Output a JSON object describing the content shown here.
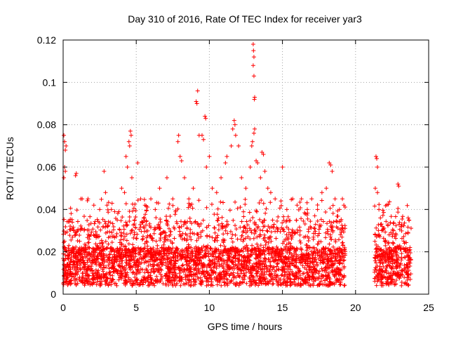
{
  "chart_data": {
    "type": "scatter",
    "title": "Day 310 of 2016, Rate Of TEC Index for receiver yar3",
    "xlabel": "GPS time / hours",
    "ylabel": "ROTI / TECUs",
    "xlim": [
      0,
      25
    ],
    "ylim": [
      0,
      0.12
    ],
    "x_ticks": [
      0,
      5,
      10,
      15,
      20,
      25
    ],
    "y_ticks": [
      0,
      0.02,
      0.04,
      0.06,
      0.08,
      0.1,
      0.12
    ],
    "x_tick_labels": [
      "0",
      "5",
      "10",
      "15",
      "20",
      "25"
    ],
    "y_tick_labels": [
      "0",
      "0.02",
      "0.04",
      "0.06",
      "0.08",
      "0.1",
      "0.12"
    ],
    "grid": true,
    "marker": "plus",
    "series_color": "#ff0000",
    "coverage_segments": [
      [
        0,
        19.3
      ],
      [
        21.3,
        23.8
      ]
    ],
    "points": [
      [
        0.05,
        0.075
      ],
      [
        0.1,
        0.072
      ],
      [
        0.15,
        0.068
      ],
      [
        0.2,
        0.07
      ],
      [
        0.1,
        0.06
      ],
      [
        0.15,
        0.058
      ],
      [
        0.05,
        0.055
      ],
      [
        0.9,
        0.057
      ],
      [
        0.85,
        0.056
      ],
      [
        1.3,
        0.045
      ],
      [
        1.7,
        0.045
      ],
      [
        2.1,
        0.042
      ],
      [
        2.5,
        0.04
      ],
      [
        2.8,
        0.058
      ],
      [
        2.9,
        0.048
      ],
      [
        3.3,
        0.04
      ],
      [
        3.7,
        0.035
      ],
      [
        4.0,
        0.05
      ],
      [
        4.2,
        0.048
      ],
      [
        4.3,
        0.065
      ],
      [
        4.4,
        0.06
      ],
      [
        4.5,
        0.072
      ],
      [
        4.6,
        0.077
      ],
      [
        4.65,
        0.075
      ],
      [
        4.55,
        0.07
      ],
      [
        4.7,
        0.055
      ],
      [
        5.1,
        0.062
      ],
      [
        5.3,
        0.045
      ],
      [
        5.6,
        0.042
      ],
      [
        6.0,
        0.045
      ],
      [
        6.3,
        0.04
      ],
      [
        6.6,
        0.05
      ],
      [
        7.1,
        0.055
      ],
      [
        7.5,
        0.045
      ],
      [
        7.9,
        0.075
      ],
      [
        7.85,
        0.072
      ],
      [
        8.0,
        0.065
      ],
      [
        8.1,
        0.063
      ],
      [
        8.3,
        0.055
      ],
      [
        8.6,
        0.045
      ],
      [
        8.9,
        0.05
      ],
      [
        9.1,
        0.091
      ],
      [
        9.15,
        0.09
      ],
      [
        9.2,
        0.096
      ],
      [
        9.3,
        0.075
      ],
      [
        9.5,
        0.075
      ],
      [
        9.6,
        0.073
      ],
      [
        9.7,
        0.084
      ],
      [
        9.75,
        0.083
      ],
      [
        9.8,
        0.06
      ],
      [
        10.0,
        0.065
      ],
      [
        10.2,
        0.05
      ],
      [
        10.5,
        0.048
      ],
      [
        10.8,
        0.055
      ],
      [
        11.1,
        0.062
      ],
      [
        11.2,
        0.065
      ],
      [
        11.5,
        0.07
      ],
      [
        11.6,
        0.078
      ],
      [
        11.7,
        0.082
      ],
      [
        11.75,
        0.08
      ],
      [
        11.8,
        0.075
      ],
      [
        12.0,
        0.07
      ],
      [
        12.2,
        0.055
      ],
      [
        12.5,
        0.05
      ],
      [
        12.8,
        0.06
      ],
      [
        12.9,
        0.07
      ],
      [
        12.95,
        0.072
      ],
      [
        13.0,
        0.118
      ],
      [
        13.02,
        0.115
      ],
      [
        13.05,
        0.112
      ],
      [
        13.0,
        0.108
      ],
      [
        13.05,
        0.103
      ],
      [
        13.1,
        0.093
      ],
      [
        13.08,
        0.092
      ],
      [
        13.1,
        0.078
      ],
      [
        13.05,
        0.076
      ],
      [
        13.2,
        0.063
      ],
      [
        13.3,
        0.062
      ],
      [
        13.5,
        0.055
      ],
      [
        13.6,
        0.067
      ],
      [
        13.7,
        0.066
      ],
      [
        13.8,
        0.058
      ],
      [
        14.0,
        0.05
      ],
      [
        14.2,
        0.048
      ],
      [
        14.5,
        0.045
      ],
      [
        14.9,
        0.044
      ],
      [
        15.0,
        0.06
      ],
      [
        15.3,
        0.04
      ],
      [
        15.7,
        0.045
      ],
      [
        16.0,
        0.042
      ],
      [
        16.3,
        0.045
      ],
      [
        16.7,
        0.04
      ],
      [
        17.0,
        0.045
      ],
      [
        17.4,
        0.04
      ],
      [
        17.7,
        0.048
      ],
      [
        18.0,
        0.05
      ],
      [
        18.2,
        0.062
      ],
      [
        18.3,
        0.061
      ],
      [
        18.4,
        0.058
      ],
      [
        18.6,
        0.045
      ],
      [
        18.9,
        0.04
      ],
      [
        19.1,
        0.045
      ],
      [
        19.2,
        0.042
      ],
      [
        21.4,
        0.065
      ],
      [
        21.45,
        0.064
      ],
      [
        21.5,
        0.06
      ],
      [
        21.35,
        0.05
      ],
      [
        21.5,
        0.048
      ],
      [
        21.6,
        0.04
      ],
      [
        21.7,
        0.036
      ],
      [
        21.8,
        0.03
      ],
      [
        22.0,
        0.025
      ],
      [
        22.3,
        0.028
      ],
      [
        22.6,
        0.03
      ],
      [
        22.9,
        0.052
      ],
      [
        22.95,
        0.051
      ],
      [
        23.1,
        0.032
      ],
      [
        23.3,
        0.025
      ],
      [
        23.6,
        0.036
      ],
      [
        23.65,
        0.035
      ]
    ]
  }
}
